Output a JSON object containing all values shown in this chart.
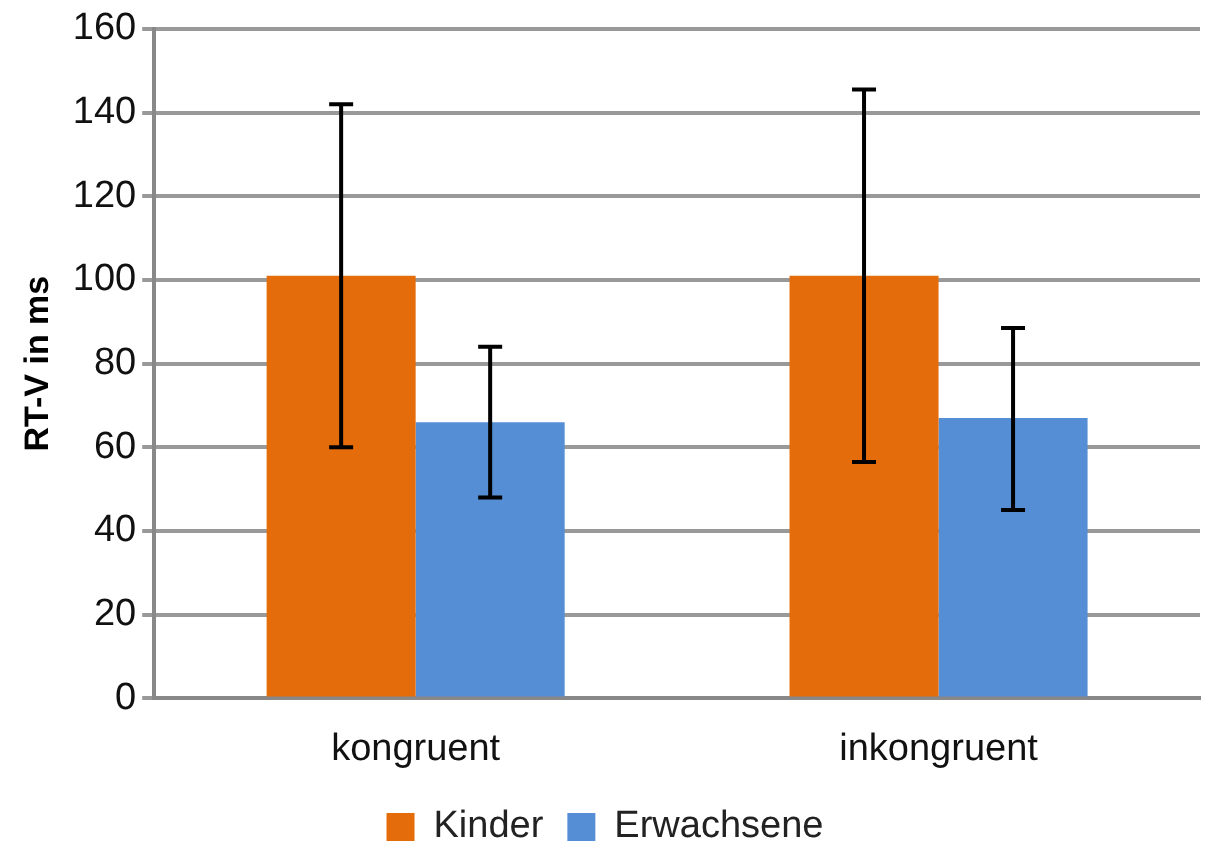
{
  "chart_data": {
    "type": "bar",
    "ylabel": "RT-V in ms",
    "categories": [
      "kongruent",
      "inkongruent"
    ],
    "series": [
      {
        "name": "Kinder",
        "color": "#e46c0a",
        "values": [
          101,
          101
        ],
        "errors": [
          [
            60,
            142
          ],
          [
            56.5,
            145.5
          ]
        ]
      },
      {
        "name": "Erwachsene",
        "color": "#558ed5",
        "values": [
          66,
          67
        ],
        "errors": [
          [
            48,
            84
          ],
          [
            45,
            88.5
          ]
        ]
      }
    ],
    "ylim": [
      0,
      160
    ],
    "yticks": [
      0,
      20,
      40,
      60,
      80,
      100,
      120,
      140,
      160
    ],
    "grid": "y",
    "legend": "bottom"
  }
}
